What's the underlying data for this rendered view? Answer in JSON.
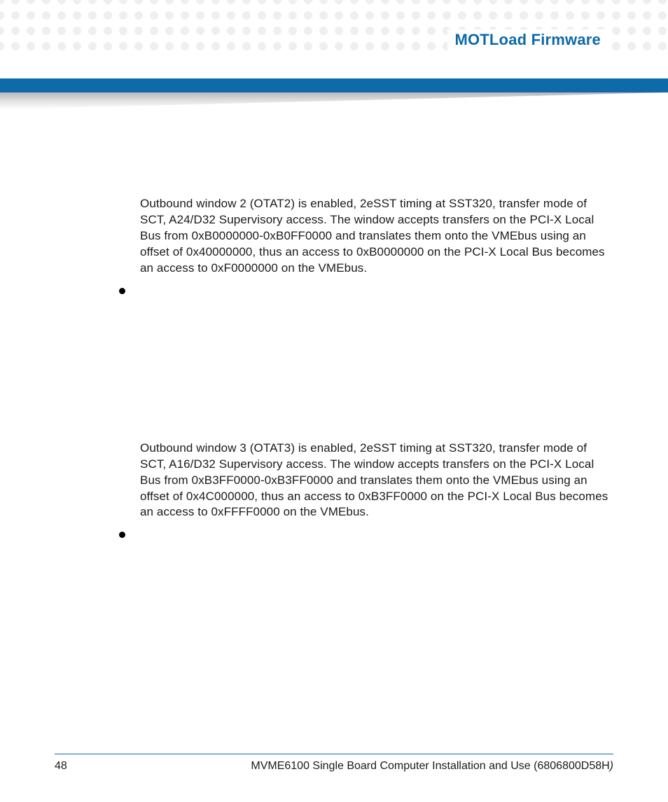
{
  "header": {
    "title": "MOTLoad Firmware",
    "title_color": "#0e6aa8",
    "bar_color": "#0e6aa8",
    "dot_color": "#d0d0d0"
  },
  "body": {
    "paragraph1": "Outbound window 2 (OTAT2) is enabled, 2eSST timing at SST320, transfer mode of SCT, A24/D32 Supervisory access. The window accepts transfers on the PCI-X Local Bus from 0xB0000000-0xB0FF0000 and translates them onto the VMEbus using an offset of 0x40000000, thus an access to 0xB0000000 on the PCI-X Local Bus becomes an access to 0xF0000000 on the VMEbus.",
    "paragraph2": "Outbound window 3 (OTAT3) is enabled, 2eSST timing at SST320, transfer mode of SCT, A16/D32 Supervisory access. The window accepts transfers on the PCI-X Local Bus from 0xB3FF0000-0xB3FF0000 and translates them onto the VMEbus using an offset of 0x4C000000, thus an access to 0xB3FF0000 on the PCI-X Local Bus becomes an access to 0xFFFF0000 on the VMEbus."
  },
  "footer": {
    "page_number": "48",
    "doc_title": "MVME6100 Single Board Computer Installation and Use (6806800D58H",
    "doc_title_suffix": ")",
    "rule_color": "#0e6aa8"
  },
  "typography": {
    "body_fontsize": 17,
    "body_color": "#1a1a1a",
    "header_fontsize": 22
  }
}
